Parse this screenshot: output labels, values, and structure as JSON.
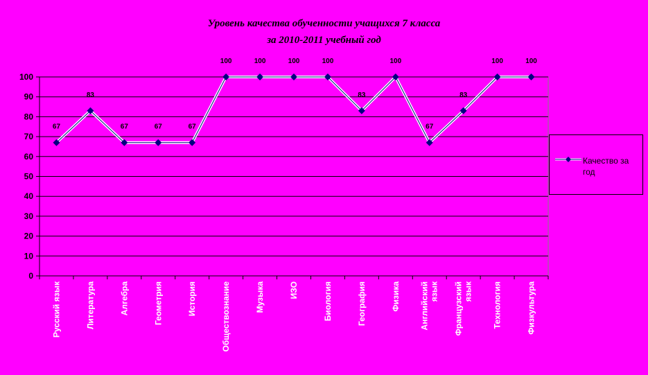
{
  "chart_data": {
    "type": "line",
    "title": "Уровень качества обученности учащихся 7 класса",
    "subtitle": "за 2010-2011 учебный год",
    "categories": [
      "Русский язык",
      "Литература",
      "Алгебра",
      "Геометрия",
      "История",
      "Обществознание",
      "Музыка",
      "ИЗО",
      "Биология",
      "География",
      "Физика",
      "Английский язык",
      "Французский язык",
      "Технология",
      "Физкультура"
    ],
    "series": [
      {
        "name": "Качество за год",
        "values": [
          67,
          83,
          67,
          67,
          67,
          100,
          100,
          100,
          100,
          83,
          100,
          67,
          83,
          100,
          100
        ]
      }
    ],
    "ylim": [
      0,
      100
    ],
    "yticks": [
      0,
      10,
      20,
      30,
      40,
      50,
      60,
      70,
      80,
      90,
      100
    ],
    "grid": true,
    "legend": "right",
    "colors": {
      "background": "#ff00ff",
      "line": "#ffffff",
      "marker": "#000080",
      "grid": "#000000"
    }
  }
}
